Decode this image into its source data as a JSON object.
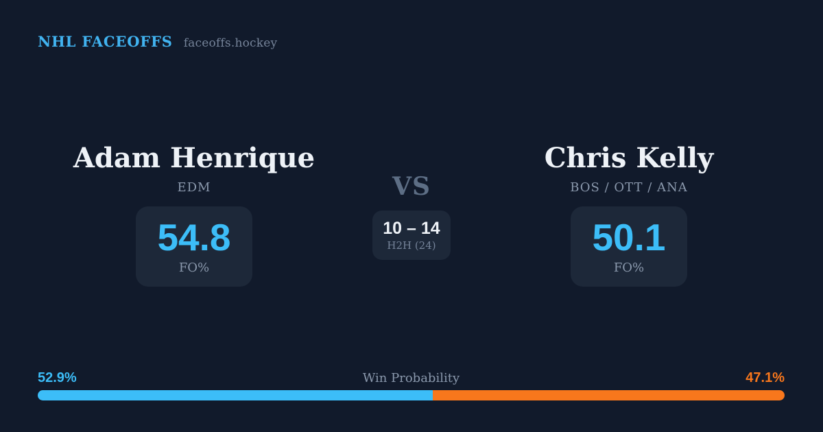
{
  "header": {
    "brand": "NHL FACEOFFS",
    "site": "faceoffs.hockey"
  },
  "matchup": {
    "vs_label": "VS",
    "h2h": {
      "score": "10 – 14",
      "label": "H2H (24)"
    },
    "player_left": {
      "name": "Adam Henrique",
      "teams": "EDM",
      "value": "54.8",
      "value_label": "FO%"
    },
    "player_right": {
      "name": "Chris Kelly",
      "teams": "BOS / OTT / ANA",
      "value": "50.1",
      "value_label": "FO%"
    }
  },
  "win_probability": {
    "label": "Win Probability",
    "left_label": "52.9%",
    "right_label": "47.1%",
    "left_value": 52.9,
    "right_value": 47.1
  },
  "colors": {
    "background": "#111a2b",
    "card": "#1d2839",
    "accent_blue": "#3cbdf8",
    "accent_orange": "#f8771c",
    "brand_blue": "#41b3f0",
    "text_primary": "#eef2f7",
    "text_muted": "#8b99ad",
    "text_dim": "#5d6e85",
    "text_faint": "#76849a"
  }
}
